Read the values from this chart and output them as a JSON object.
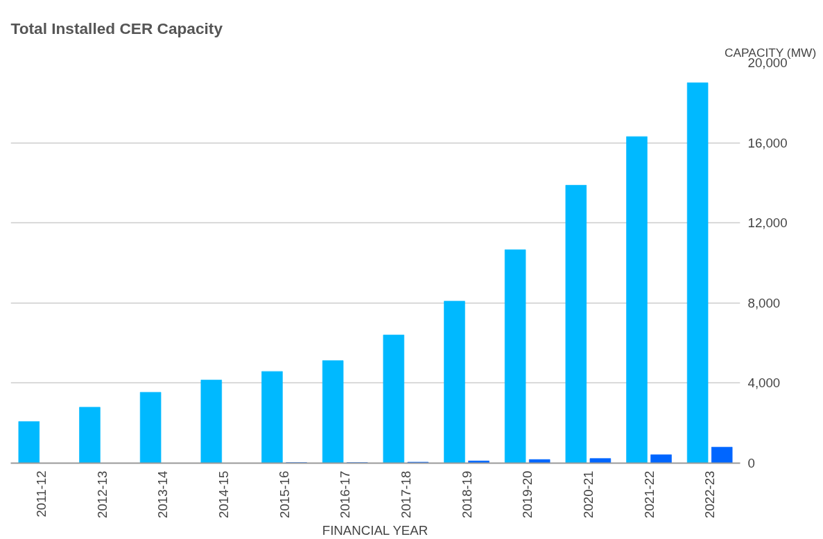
{
  "chart_data": {
    "type": "bar",
    "title": "Total Installed CER Capacity",
    "xlabel": "FINANCIAL YEAR",
    "ylabel": "CAPACITY (MW)",
    "categories": [
      "2011-12",
      "2012-13",
      "2013-14",
      "2014-15",
      "2015-16",
      "2016-17",
      "2017-18",
      "2018-19",
      "2019-20",
      "2020-21",
      "2021-22",
      "2022-23"
    ],
    "series": [
      {
        "color": "#00b9ff",
        "values": [
          2080,
          2790,
          3540,
          4150,
          4580,
          5120,
          6400,
          8090,
          10660,
          13880,
          16310,
          19000
        ]
      },
      {
        "color": "#0066ff",
        "values": [
          0,
          0,
          0,
          0,
          30,
          30,
          50,
          110,
          180,
          230,
          420,
          800
        ]
      }
    ],
    "ylim": [
      0,
      20000
    ],
    "yticks": [
      {
        "value": 0,
        "label": "0"
      },
      {
        "value": 4000,
        "label": "4,000"
      },
      {
        "value": 8000,
        "label": "8,000"
      },
      {
        "value": 12000,
        "label": "12,000"
      },
      {
        "value": 16000,
        "label": "16,000"
      },
      {
        "value": 20000,
        "label": "20,000"
      }
    ],
    "grid": "y"
  }
}
